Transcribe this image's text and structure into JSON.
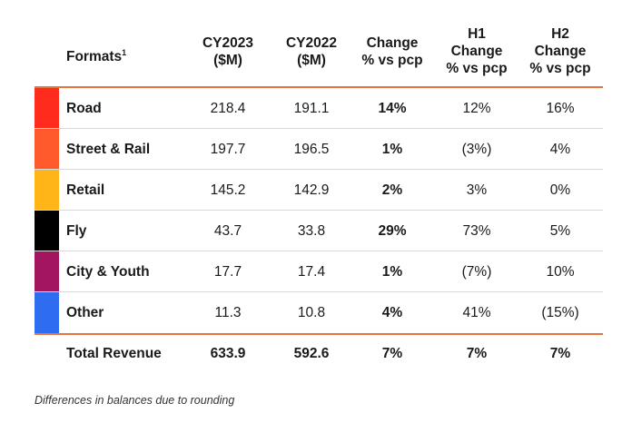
{
  "header": {
    "formats": "Formats",
    "formats_sup": "1",
    "cy2023": [
      "CY2023",
      "($M)"
    ],
    "cy2022": [
      "CY2022",
      "($M)"
    ],
    "change": [
      "Change",
      "% vs pcp"
    ],
    "h1": [
      "H1",
      "Change",
      "% vs pcp"
    ],
    "h2": [
      "H2",
      "Change",
      "% vs pcp"
    ]
  },
  "rows": [
    {
      "name": "Road",
      "color": "#ff2b1c",
      "cy2023": "218.4",
      "cy2022": "191.1",
      "change": "14%",
      "h1": "12%",
      "h2": "16%"
    },
    {
      "name": "Street & Rail",
      "color": "#ff5a2c",
      "cy2023": "197.7",
      "cy2022": "196.5",
      "change": "1%",
      "h1": "(3%)",
      "h2": "4%"
    },
    {
      "name": "Retail",
      "color": "#ffb417",
      "cy2023": "145.2",
      "cy2022": "142.9",
      "change": "2%",
      "h1": "3%",
      "h2": "0%"
    },
    {
      "name": "Fly",
      "color": "#000000",
      "cy2023": "43.7",
      "cy2022": "33.8",
      "change": "29%",
      "h1": "73%",
      "h2": "5%"
    },
    {
      "name": "City & Youth",
      "color": "#a3155f",
      "cy2023": "17.7",
      "cy2022": "17.4",
      "change": "1%",
      "h1": "(7%)",
      "h2": "10%"
    },
    {
      "name": "Other",
      "color": "#2f6df0",
      "cy2023": "11.3",
      "cy2022": "10.8",
      "change": "4%",
      "h1": "41%",
      "h2": "(15%)"
    }
  ],
  "total": {
    "name": "Total Revenue",
    "cy2023": "633.9",
    "cy2022": "592.6",
    "change": "7%",
    "h1": "7%",
    "h2": "7%"
  },
  "footnote": "Differences in balances due to rounding",
  "colors": {
    "rule": "#e8743b",
    "divider": "#d9d9d9"
  }
}
